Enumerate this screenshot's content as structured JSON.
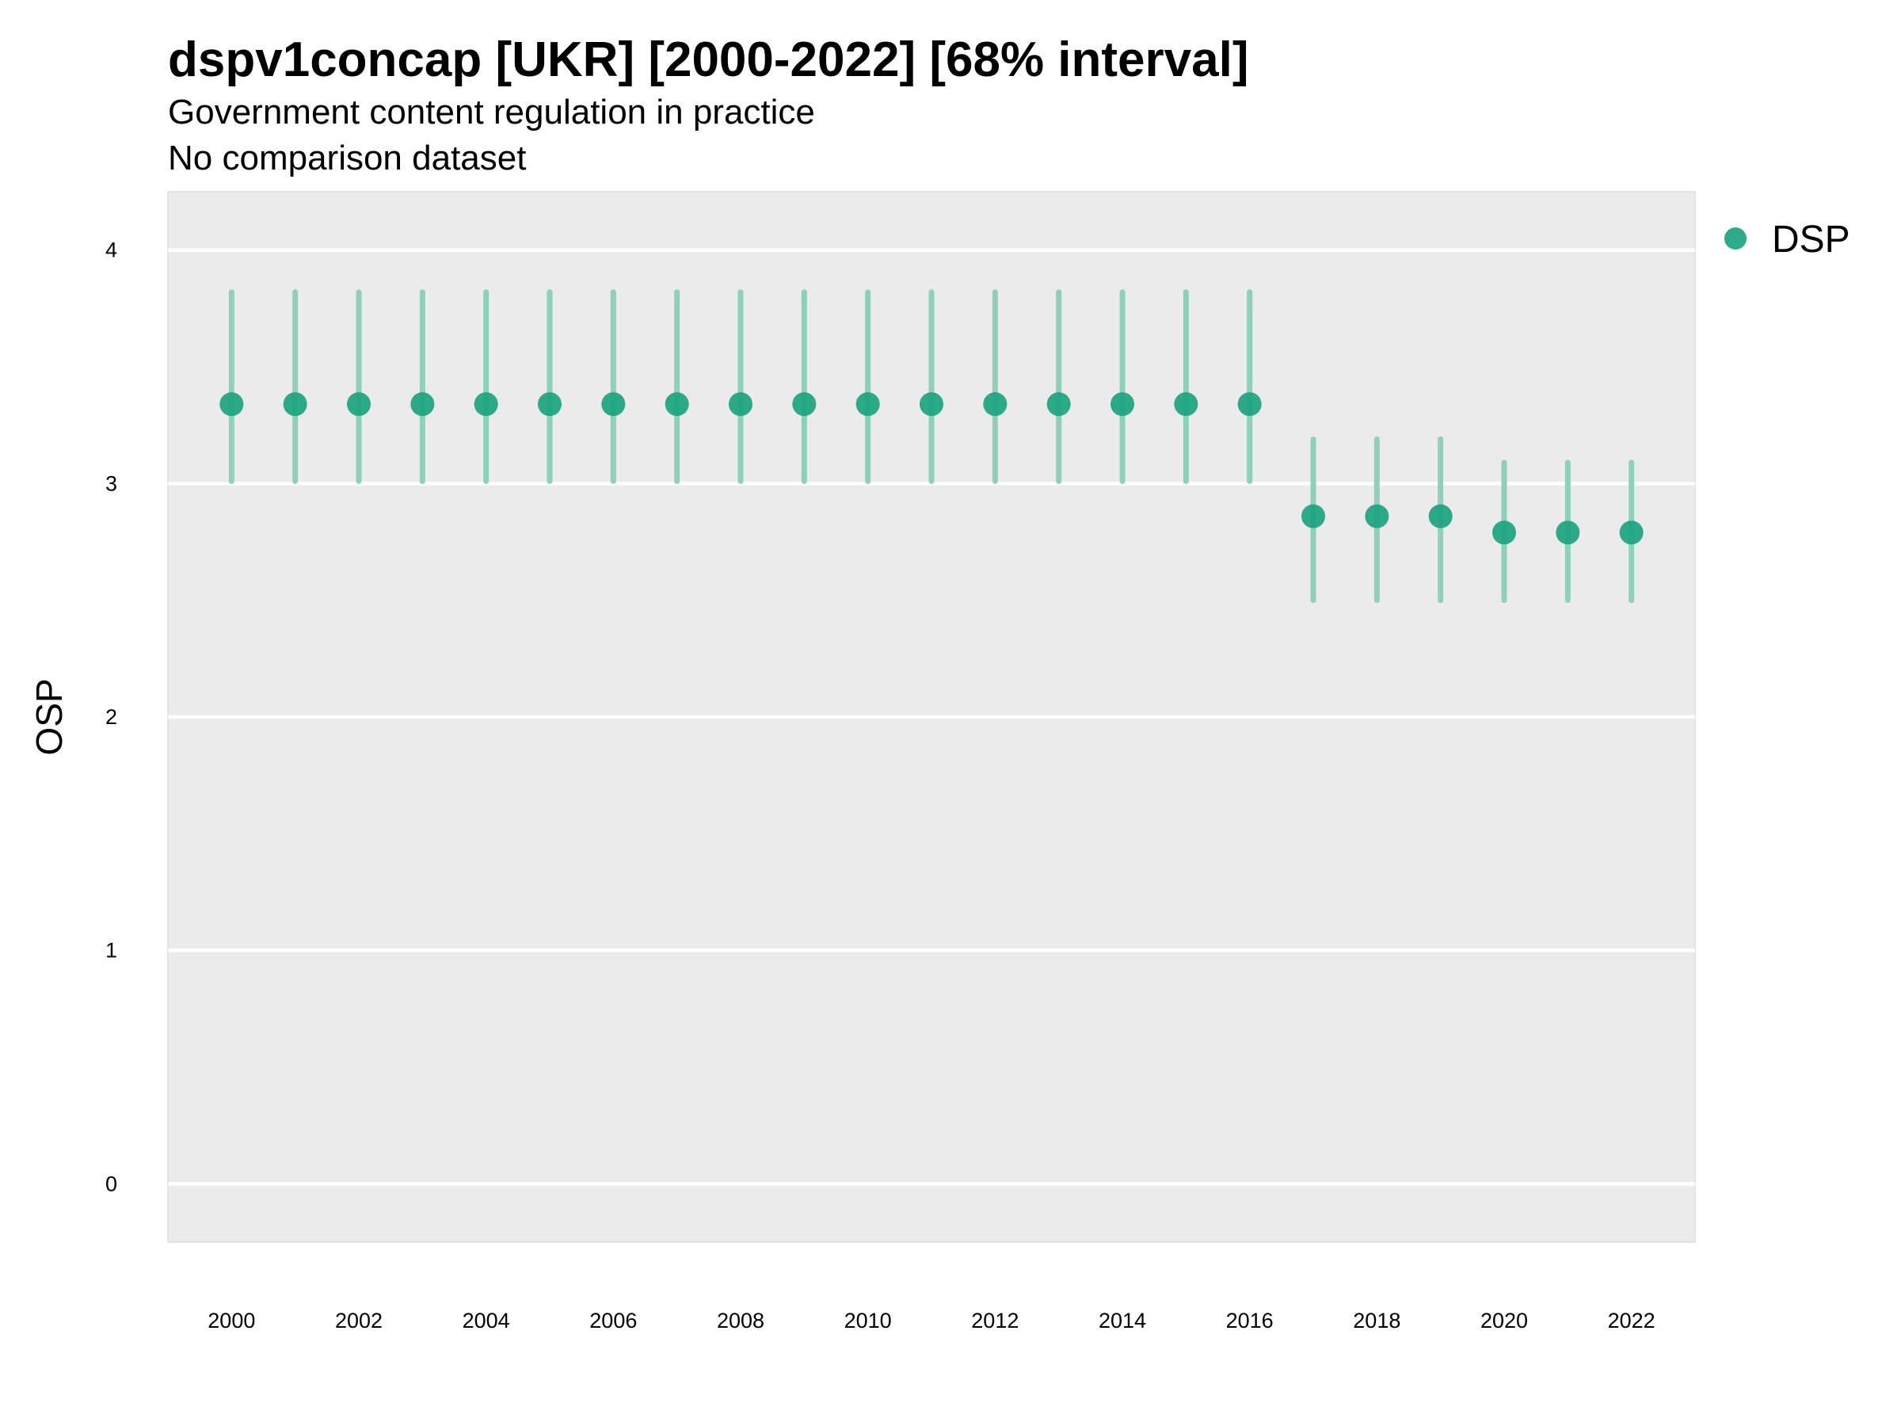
{
  "chart_data": {
    "type": "scatter",
    "title": "dspv1concap [UKR] [2000-2022] [68% interval]",
    "subtitle": "Government content regulation in practice",
    "caption": "No comparison dataset",
    "ylabel": "OSP",
    "xlabel": "",
    "ylim": [
      -0.25,
      4.25
    ],
    "xlim": [
      1999,
      2023
    ],
    "yticks": [
      0,
      1,
      2,
      3,
      4
    ],
    "xticks": [
      2000,
      2002,
      2004,
      2006,
      2008,
      2010,
      2012,
      2014,
      2016,
      2018,
      2020,
      2022
    ],
    "grid": true,
    "legend_position": "right",
    "colors": {
      "point": "#1aa37f",
      "interval": "#8fd0bb",
      "panel": "#ebebeb",
      "grid": "#ffffff"
    },
    "series": [
      {
        "name": "DSP",
        "x": [
          2000,
          2001,
          2002,
          2003,
          2004,
          2005,
          2006,
          2007,
          2008,
          2009,
          2010,
          2011,
          2012,
          2013,
          2014,
          2015,
          2016,
          2017,
          2018,
          2019,
          2020,
          2021,
          2022
        ],
        "y": [
          3.34,
          3.34,
          3.34,
          3.34,
          3.34,
          3.34,
          3.34,
          3.34,
          3.34,
          3.34,
          3.34,
          3.34,
          3.34,
          3.34,
          3.34,
          3.34,
          3.34,
          2.86,
          2.86,
          2.86,
          2.79,
          2.79,
          2.79
        ],
        "lower": [
          3.01,
          3.01,
          3.01,
          3.01,
          3.01,
          3.01,
          3.01,
          3.01,
          3.01,
          3.01,
          3.01,
          3.01,
          3.01,
          3.01,
          3.01,
          3.01,
          3.01,
          2.5,
          2.5,
          2.5,
          2.5,
          2.5,
          2.5
        ],
        "upper": [
          3.82,
          3.82,
          3.82,
          3.82,
          3.82,
          3.82,
          3.82,
          3.82,
          3.82,
          3.82,
          3.82,
          3.82,
          3.82,
          3.82,
          3.82,
          3.82,
          3.82,
          3.19,
          3.19,
          3.19,
          3.09,
          3.09,
          3.09
        ]
      }
    ]
  }
}
